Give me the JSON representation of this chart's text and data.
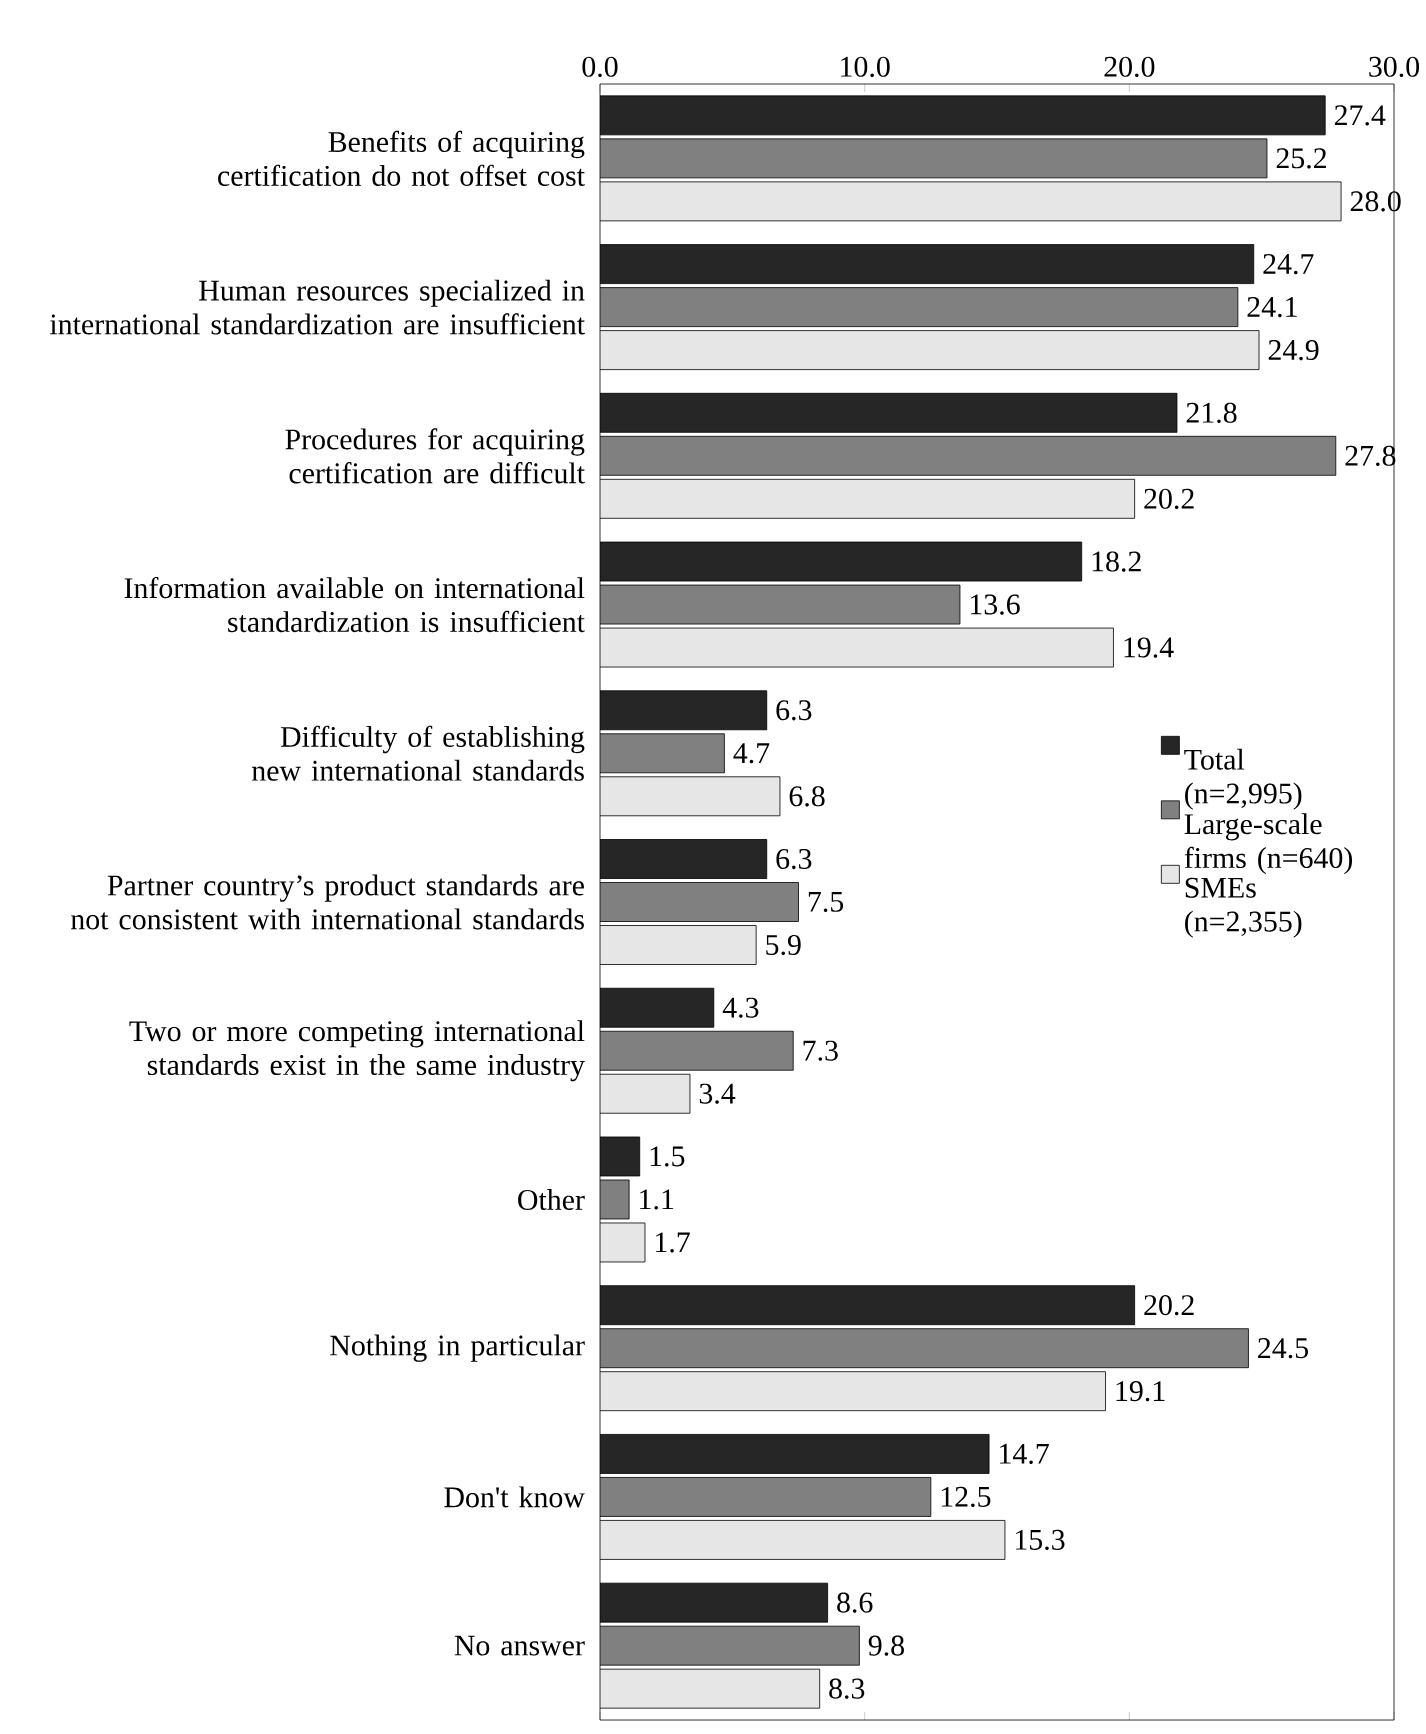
{
  "chart_data": {
    "type": "bar",
    "orientation": "horizontal",
    "categories": [
      "Benefits of acquiring certification do not offset cost",
      "Human resources specialized in international standardization are insufficient",
      "Procedures for acquiring certification are difficult",
      "Information available on international standardization is insufficient",
      "Difficulty of establishing new international standards",
      "Partner country’s product standards are not consistent with international standards",
      "Two or more competing international standards exist in the same industry",
      "Other",
      "Nothing in particular",
      "Don't know",
      "No answer"
    ],
    "series": [
      {
        "name": "Total (n=2,995)",
        "color": "#262626",
        "values": [
          27.4,
          24.7,
          21.8,
          18.2,
          6.3,
          6.3,
          4.3,
          1.5,
          20.2,
          14.7,
          8.6
        ],
        "value_labels": [
          "27.4",
          "24.7",
          "21.8",
          "18.2",
          "6.3",
          "6.3",
          "4.3",
          "1.5",
          "20.2",
          "14.7",
          "8.6"
        ]
      },
      {
        "name": "Large-scale firms (n=640)",
        "color": "#808080",
        "values": [
          25.2,
          24.1,
          27.8,
          13.6,
          4.7,
          7.5,
          7.3,
          1.1,
          24.5,
          12.5,
          9.8
        ],
        "value_labels": [
          "25.2",
          "24.1",
          "27.8",
          "13.6",
          "4.7",
          "7.5",
          "7.3",
          "1.1",
          "24.5",
          "12.5",
          "9.8"
        ]
      },
      {
        "name": "SMEs (n=2,355)",
        "color": "#e6e6e6",
        "values": [
          28.0,
          24.9,
          20.2,
          19.4,
          6.8,
          5.9,
          3.4,
          1.7,
          19.1,
          15.3,
          8.3
        ],
        "value_labels": [
          "28.0",
          "24.9",
          "20.2",
          "19.4",
          "6.8",
          "5.9",
          "3.4",
          "1.7",
          "19.1",
          "15.3",
          "8.3"
        ]
      }
    ],
    "xlim": [
      0,
      30
    ],
    "xticks": [
      {
        "value": 0,
        "label": "0.0"
      },
      {
        "value": 10,
        "label": "10.0"
      },
      {
        "value": 20,
        "label": "20.0"
      },
      {
        "value": 30,
        "label": "30.0"
      }
    ],
    "legend": "right"
  }
}
